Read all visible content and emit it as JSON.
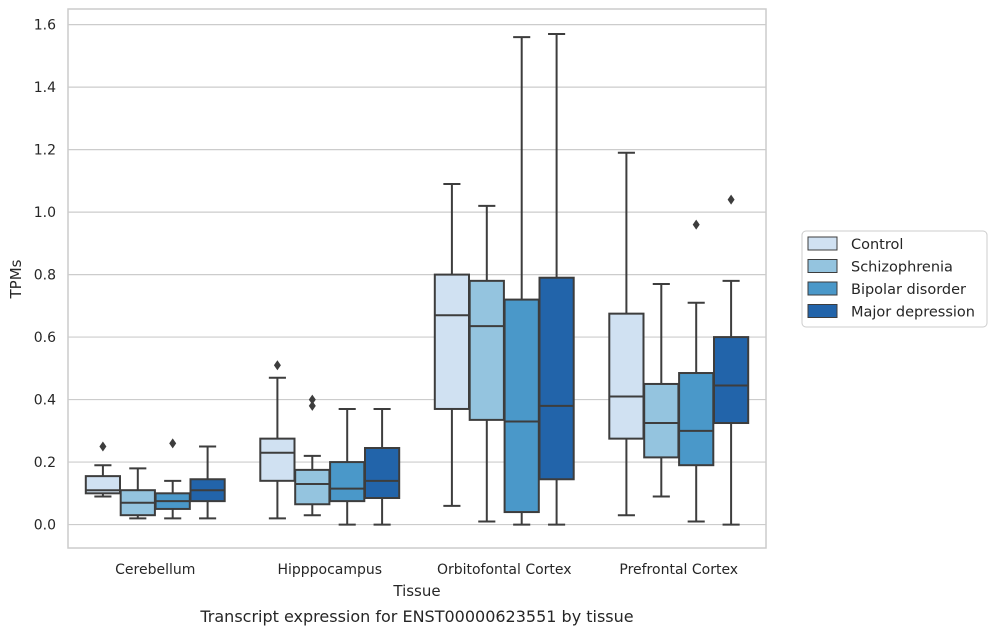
{
  "caption": "Transcript expression for ENST00000623551 by tissue",
  "chart_data": {
    "type": "box",
    "title": "",
    "xlabel": "Tissue",
    "ylabel": "TPMs",
    "ylim": [
      -0.075,
      1.65
    ],
    "yticks": [
      "0.0",
      "0.2",
      "0.4",
      "0.6",
      "0.8",
      "1.0",
      "1.2",
      "1.4",
      "1.6"
    ],
    "grid": "horizontal",
    "legend_position": "right",
    "categories": [
      "Cerebellum",
      "Hipppocampus",
      "Orbitofontal Cortex",
      "Prefrontal Cortex"
    ],
    "series": [
      {
        "name": "Control",
        "color": "#d0e1f2",
        "boxes": [
          {
            "whislo": 0.09,
            "q1": 0.1,
            "med": 0.11,
            "q3": 0.155,
            "whishi": 0.19,
            "fliers": [
              0.25
            ]
          },
          {
            "whislo": 0.02,
            "q1": 0.14,
            "med": 0.23,
            "q3": 0.275,
            "whishi": 0.47,
            "fliers": [
              0.51
            ]
          },
          {
            "whislo": 0.06,
            "q1": 0.37,
            "med": 0.67,
            "q3": 0.8,
            "whishi": 1.09,
            "fliers": []
          },
          {
            "whislo": 0.03,
            "q1": 0.275,
            "med": 0.41,
            "q3": 0.675,
            "whishi": 1.19,
            "fliers": []
          }
        ]
      },
      {
        "name": "Schizophrenia",
        "color": "#94c4df",
        "boxes": [
          {
            "whislo": 0.02,
            "q1": 0.03,
            "med": 0.07,
            "q3": 0.11,
            "whishi": 0.18,
            "fliers": []
          },
          {
            "whislo": 0.03,
            "q1": 0.065,
            "med": 0.13,
            "q3": 0.175,
            "whishi": 0.22,
            "fliers": [
              0.38,
              0.4
            ]
          },
          {
            "whislo": 0.01,
            "q1": 0.335,
            "med": 0.635,
            "q3": 0.78,
            "whishi": 1.02,
            "fliers": []
          },
          {
            "whislo": 0.09,
            "q1": 0.215,
            "med": 0.325,
            "q3": 0.45,
            "whishi": 0.77,
            "fliers": []
          }
        ]
      },
      {
        "name": "Bipolar disorder",
        "color": "#4a98c9",
        "boxes": [
          {
            "whislo": 0.02,
            "q1": 0.05,
            "med": 0.075,
            "q3": 0.1,
            "whishi": 0.14,
            "fliers": [
              0.26
            ]
          },
          {
            "whislo": 0.0,
            "q1": 0.075,
            "med": 0.115,
            "q3": 0.2,
            "whishi": 0.37,
            "fliers": []
          },
          {
            "whislo": 0.0,
            "q1": 0.04,
            "med": 0.33,
            "q3": 0.72,
            "whishi": 1.56,
            "fliers": []
          },
          {
            "whislo": 0.01,
            "q1": 0.19,
            "med": 0.3,
            "q3": 0.485,
            "whishi": 0.71,
            "fliers": [
              0.96
            ]
          }
        ]
      },
      {
        "name": "Major depression",
        "color": "#2264aa",
        "boxes": [
          {
            "whislo": 0.02,
            "q1": 0.075,
            "med": 0.11,
            "q3": 0.145,
            "whishi": 0.25,
            "fliers": []
          },
          {
            "whislo": 0.0,
            "q1": 0.085,
            "med": 0.14,
            "q3": 0.245,
            "whishi": 0.37,
            "fliers": []
          },
          {
            "whislo": 0.0,
            "q1": 0.145,
            "med": 0.38,
            "q3": 0.79,
            "whishi": 1.57,
            "fliers": []
          },
          {
            "whislo": 0.0,
            "q1": 0.325,
            "med": 0.445,
            "q3": 0.6,
            "whishi": 0.78,
            "fliers": [
              1.04
            ]
          }
        ]
      }
    ]
  }
}
